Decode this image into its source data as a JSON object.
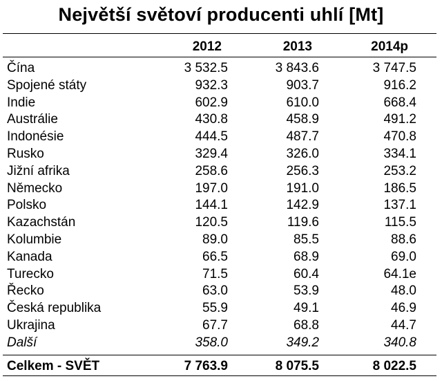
{
  "title": "Největší světoví producenti uhlí [Mt]",
  "columns": [
    "2012",
    "2013",
    "2014p"
  ],
  "rows": [
    {
      "country": "Čína",
      "v2012": "3 532.5",
      "v2013": "3 843.6",
      "v2014": "3 747.5"
    },
    {
      "country": "Spojené státy",
      "v2012": "932.3",
      "v2013": "903.7",
      "v2014": "916.2"
    },
    {
      "country": "Indie",
      "v2012": "602.9",
      "v2013": "610.0",
      "v2014": "668.4"
    },
    {
      "country": "Austrálie",
      "v2012": "430.8",
      "v2013": "458.9",
      "v2014": "491.2"
    },
    {
      "country": "Indonésie",
      "v2012": "444.5",
      "v2013": "487.7",
      "v2014": "470.8"
    },
    {
      "country": "Rusko",
      "v2012": "329.4",
      "v2013": "326.0",
      "v2014": "334.1"
    },
    {
      "country": "Jižní afrika",
      "v2012": "258.6",
      "v2013": "256.3",
      "v2014": "253.2"
    },
    {
      "country": "Německo",
      "v2012": "197.0",
      "v2013": "191.0",
      "v2014": "186.5"
    },
    {
      "country": "Polsko",
      "v2012": "144.1",
      "v2013": "142.9",
      "v2014": "137.1"
    },
    {
      "country": "Kazachstán",
      "v2012": "120.5",
      "v2013": "119.6",
      "v2014": "115.5"
    },
    {
      "country": "Kolumbie",
      "v2012": "89.0",
      "v2013": "85.5",
      "v2014": "88.6"
    },
    {
      "country": "Kanada",
      "v2012": "66.5",
      "v2013": "68.9",
      "v2014": "69.0"
    },
    {
      "country": "Turecko",
      "v2012": "71.5",
      "v2013": "60.4",
      "v2014": "64.1e"
    },
    {
      "country": "Řecko",
      "v2012": "63.0",
      "v2013": "53.9",
      "v2014": "48.0"
    },
    {
      "country": "Česká republika",
      "v2012": "55.9",
      "v2013": "49.1",
      "v2014": "46.9"
    },
    {
      "country": "Ukrajina",
      "v2012": "67.7",
      "v2013": "68.8",
      "v2014": "44.7"
    }
  ],
  "other": {
    "country": "Další",
    "v2012": "358.0",
    "v2013": "349.2",
    "v2014": "340.8"
  },
  "total": {
    "country": "Celkem - SVĚT",
    "v2012": "7 763.9",
    "v2013": "8 075.5",
    "v2014": "8 022.5"
  }
}
